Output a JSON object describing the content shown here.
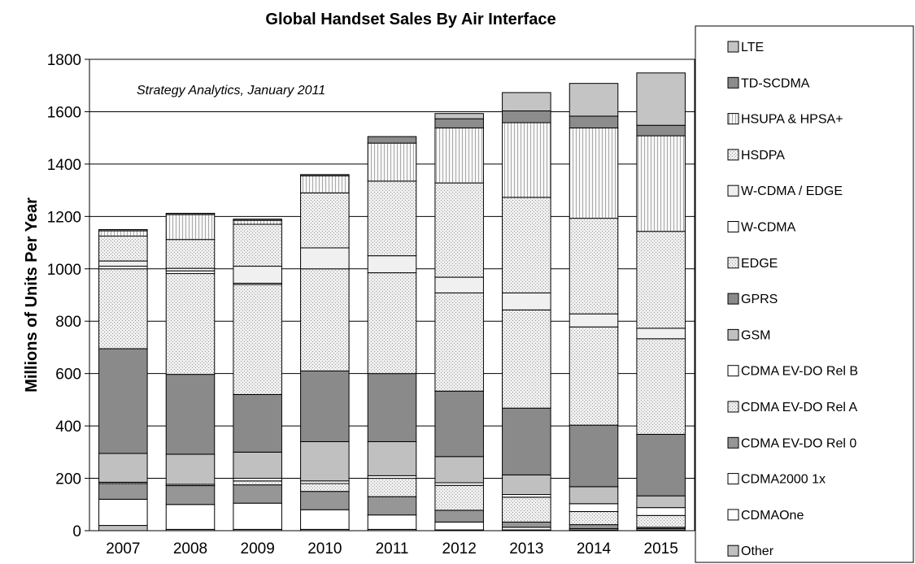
{
  "chart_data": {
    "type": "bar",
    "stacked": true,
    "title": "Global Handset Sales By Air Interface",
    "ylabel": "Millions of Units Per Year",
    "xlabel": "",
    "annotation": "Strategy Analytics, January 2011",
    "ylim": [
      0,
      1800
    ],
    "yticks": [
      0,
      200,
      400,
      600,
      800,
      1000,
      1200,
      1400,
      1600,
      1800
    ],
    "grid": "horizontal",
    "legend_position": "right",
    "categories": [
      "2007",
      "2008",
      "2009",
      "2010",
      "2011",
      "2012",
      "2013",
      "2014",
      "2015"
    ],
    "series": [
      {
        "name": "Other",
        "color": "#c0c0c0",
        "pattern": "none",
        "values": [
          20,
          5,
          5,
          5,
          5,
          3,
          3,
          3,
          3
        ]
      },
      {
        "name": "CDMAOne",
        "color": "#ffffff",
        "pattern": "none",
        "values": [
          100,
          95,
          100,
          75,
          55,
          30,
          10,
          5,
          5
        ]
      },
      {
        "name": "CDMA2000 1x",
        "color": "#ffffff",
        "pattern": "none",
        "values": [
          0,
          0,
          0,
          0,
          0,
          0,
          0,
          0,
          0
        ]
      },
      {
        "name": "CDMA EV-DO Rel 0",
        "color": "#969696",
        "pattern": "none",
        "values": [
          60,
          72,
          70,
          70,
          70,
          45,
          20,
          15,
          5
        ]
      },
      {
        "name": "CDMA EV-DO Rel A",
        "color": "#efefef",
        "pattern": "dots",
        "values": [
          5,
          5,
          15,
          30,
          70,
          95,
          95,
          50,
          45
        ]
      },
      {
        "name": "CDMA EV-DO Rel B",
        "color": "#ffffff",
        "pattern": "none",
        "values": [
          0,
          0,
          10,
          10,
          10,
          10,
          10,
          30,
          30
        ]
      },
      {
        "name": "GSM",
        "color": "#c0c0c0",
        "pattern": "none",
        "values": [
          110,
          115,
          100,
          150,
          130,
          100,
          75,
          65,
          45
        ]
      },
      {
        "name": "GPRS",
        "color": "#8a8a8a",
        "pattern": "none",
        "values": [
          400,
          305,
          220,
          270,
          260,
          250,
          255,
          235,
          235
        ]
      },
      {
        "name": "EDGE",
        "color": "#e6e6e6",
        "pattern": "dots",
        "values": [
          305,
          385,
          420,
          390,
          385,
          375,
          375,
          375,
          365
        ]
      },
      {
        "name": "W-CDMA",
        "color": "#ffffff",
        "pattern": "none",
        "values": [
          10,
          10,
          5,
          0,
          0,
          0,
          0,
          0,
          0
        ]
      },
      {
        "name": "W-CDMA / EDGE",
        "color": "#f0f0f0",
        "pattern": "none",
        "values": [
          20,
          10,
          65,
          80,
          65,
          60,
          65,
          50,
          40
        ]
      },
      {
        "name": "HSDPA",
        "color": "#e9e9e9",
        "pattern": "dots",
        "values": [
          95,
          110,
          160,
          210,
          285,
          360,
          365,
          365,
          370
        ]
      },
      {
        "name": "HSUPA & HPSA+",
        "color": "#f4f4f4",
        "pattern": "vlines",
        "values": [
          20,
          95,
          15,
          65,
          145,
          210,
          285,
          345,
          365
        ]
      },
      {
        "name": "TD-SCDMA",
        "color": "#8c8c8c",
        "pattern": "none",
        "values": [
          5,
          5,
          5,
          5,
          25,
          35,
          45,
          45,
          40
        ]
      },
      {
        "name": "LTE",
        "color": "#c4c4c4",
        "pattern": "none",
        "values": [
          0,
          0,
          0,
          0,
          0,
          20,
          70,
          125,
          200
        ]
      }
    ]
  }
}
